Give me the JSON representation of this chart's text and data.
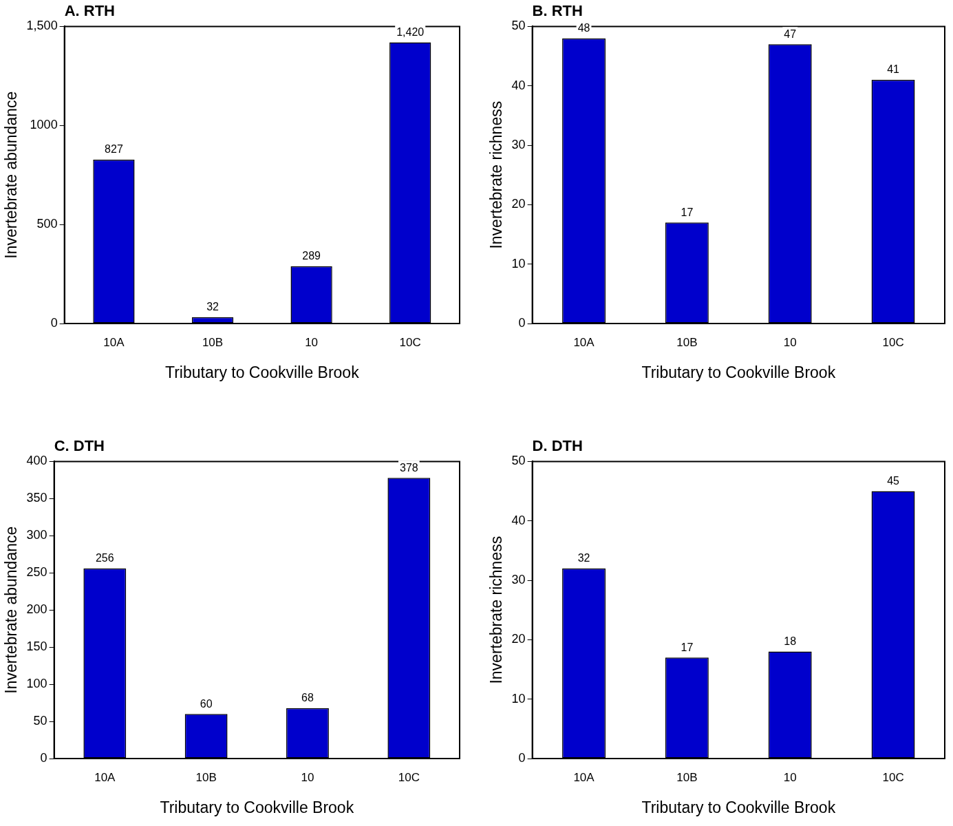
{
  "chart_data": [
    {
      "type": "bar",
      "title": "A. RTH",
      "xlabel": "Tributary to Cookville Brook",
      "ylabel": "Invertebrate abundance",
      "categories": [
        "10A",
        "10B",
        "10",
        "10C"
      ],
      "values": [
        827,
        32,
        289,
        1420
      ],
      "value_labels": [
        "827",
        "32",
        "289",
        "1,420"
      ],
      "color": "#0000cc",
      "ylim": [
        0,
        1500
      ],
      "yticks": [
        0,
        500,
        1000,
        {
          "value": 1500,
          "label": "1,500"
        }
      ],
      "grid": false
    },
    {
      "type": "bar",
      "title": "B. RTH",
      "xlabel": "Tributary to Cookville Brook",
      "ylabel": "Invertebrate richness",
      "categories": [
        "10A",
        "10B",
        "10",
        "10C"
      ],
      "values": [
        48,
        17,
        47,
        41
      ],
      "data_labels": true,
      "color": "#0000cc",
      "ylim": [
        0,
        50
      ],
      "yticks": [
        0,
        10,
        20,
        30,
        40,
        50
      ],
      "grid": false
    },
    {
      "type": "bar",
      "title": "C. DTH",
      "xlabel": "Tributary to Cookville Brook",
      "ylabel": "Invertebrate abundance",
      "categories": [
        "10A",
        "10B",
        "10",
        "10C"
      ],
      "values": [
        256,
        60,
        68,
        378
      ],
      "data_labels": true,
      "color": "#0000cc",
      "ylim": [
        0,
        400
      ],
      "yticks": [
        0,
        50,
        100,
        150,
        200,
        250,
        300,
        350,
        400
      ],
      "grid": false
    },
    {
      "type": "bar",
      "title": "D. DTH",
      "xlabel": "Tributary to Cookville Brook",
      "ylabel": "Invertebrate richness",
      "categories": [
        "10A",
        "10B",
        "10",
        "10C"
      ],
      "values": [
        32,
        17,
        18,
        45
      ],
      "data_labels": true,
      "color": "#0000cc",
      "ylim": [
        0,
        50
      ],
      "yticks": [
        0,
        10,
        20,
        30,
        40,
        50
      ],
      "grid": false
    }
  ]
}
